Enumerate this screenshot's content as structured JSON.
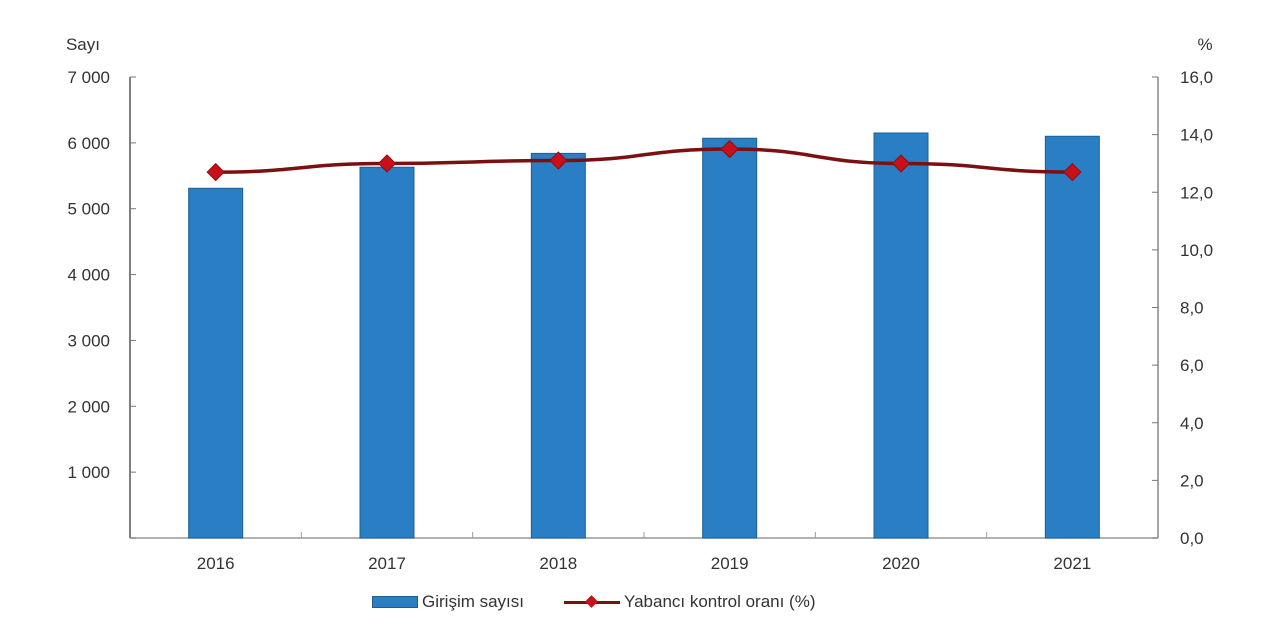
{
  "chart_data": {
    "type": "bar+line",
    "title": "",
    "categories": [
      "2016",
      "2017",
      "2018",
      "2019",
      "2020",
      "2021"
    ],
    "series": [
      {
        "name": "Girişim sayısı",
        "type": "bar",
        "axis": "left",
        "color": "#2a7fc4",
        "values": [
          5310,
          5630,
          5840,
          6070,
          6150,
          6100
        ]
      },
      {
        "name": "Yabancı kontrol oranı (%)",
        "type": "line",
        "axis": "right",
        "color": "#7a1010",
        "marker_color": "#c8101a",
        "marker": "diamond",
        "values": [
          12.7,
          13.0,
          13.1,
          13.5,
          13.0,
          12.7
        ]
      }
    ],
    "left_axis": {
      "label": "Sayı",
      "ylim": [
        0,
        7000
      ],
      "ticks": [
        0,
        1000,
        2000,
        3000,
        4000,
        5000,
        6000,
        7000
      ],
      "tick_labels": [
        "",
        "1 000",
        "2 000",
        "3 000",
        "4 000",
        "5 000",
        "6 000",
        "7 000"
      ]
    },
    "right_axis": {
      "label": "%",
      "ylim": [
        0,
        16
      ],
      "ticks": [
        0,
        2,
        4,
        6,
        8,
        10,
        12,
        14,
        16
      ],
      "tick_labels": [
        "0,0",
        "2,0",
        "4,0",
        "6,0",
        "8,0",
        "10,0",
        "12,0",
        "14,0",
        "16,0"
      ]
    },
    "xlabel": "",
    "grid": false,
    "legend_position": "bottom"
  },
  "legend": {
    "bar_label": "Girişim sayısı",
    "line_label": "Yabancı kontrol oranı (%)"
  }
}
